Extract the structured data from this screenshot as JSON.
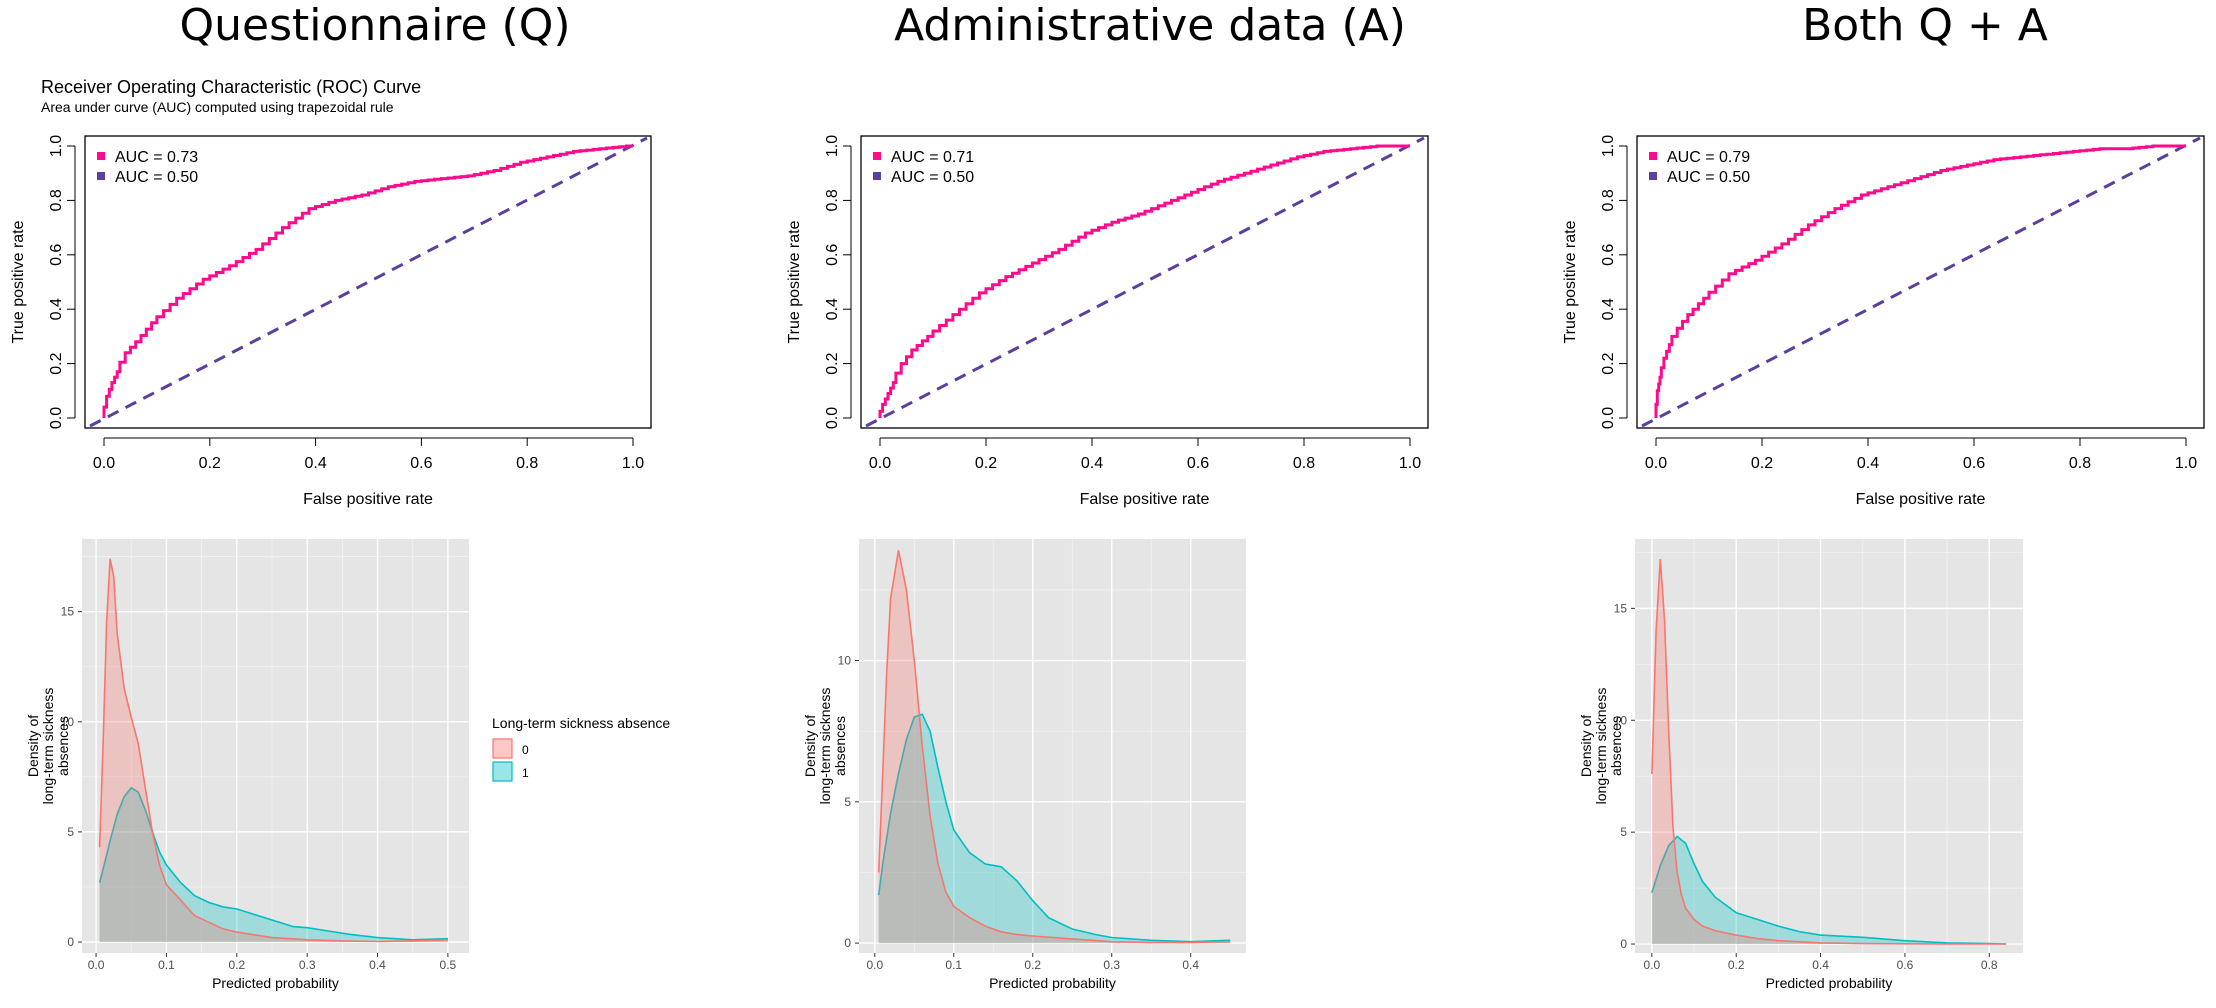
{
  "columns": [
    {
      "title": "Questionnaire (Q)",
      "roc": {
        "heading": "Receiver Operating Characteristic (ROC) Curve",
        "subheading": "Area under curve (AUC) computed using trapezoidal rule",
        "xlabel": "False positive rate",
        "ylabel": "True positive rate",
        "legend": [
          "AUC = 0.73",
          "AUC = 0.50"
        ]
      },
      "density": {
        "xlabel": "Predicted probability",
        "ylabel": [
          "Density of",
          "long-term sickness",
          "absences"
        ]
      }
    },
    {
      "title": "Administrative data (A)",
      "roc": {
        "heading": "",
        "subheading": "",
        "xlabel": "False positive rate",
        "ylabel": "True positive rate",
        "legend": [
          "AUC = 0.71",
          "AUC = 0.50"
        ]
      },
      "density": {
        "xlabel": "Predicted probability",
        "ylabel": [
          "Density of",
          "long-term sickness",
          "absences"
        ]
      }
    },
    {
      "title": "Both Q + A",
      "roc": {
        "heading": "",
        "subheading": "",
        "xlabel": "False positive rate",
        "ylabel": "True positive rate",
        "legend": [
          "AUC = 0.79",
          "AUC = 0.50"
        ]
      },
      "density": {
        "xlabel": "Predicted probability",
        "ylabel": [
          "Density of",
          "long-term sickness",
          "absences"
        ]
      }
    }
  ],
  "density_legend": {
    "title": "Long-term sickness absence",
    "items": [
      "0",
      "1"
    ]
  },
  "colors": {
    "roc_curve": "#ff0a8c",
    "chance_line": "#5b3fa0",
    "density_0_line": "#f8766d",
    "density_0_fill": "#f8766d",
    "density_1_line": "#00bfc4",
    "density_1_fill": "#00bfc4",
    "panel_bg": "#e5e5e5",
    "grid": "#ffffff"
  },
  "chart_data": [
    {
      "type": "line",
      "panel": "roc-q",
      "xlim": [
        0,
        1
      ],
      "ylim": [
        0,
        1
      ],
      "xticks": [
        0.0,
        0.2,
        0.4,
        0.6,
        0.8,
        1.0
      ],
      "yticks": [
        0.0,
        0.2,
        0.4,
        0.6,
        0.8,
        1.0
      ],
      "series": [
        {
          "name": "AUC = 0.73",
          "x": [
            0,
            0.01,
            0.02,
            0.03,
            0.05,
            0.07,
            0.1,
            0.15,
            0.2,
            0.25,
            0.3,
            0.35,
            0.4,
            0.45,
            0.5,
            0.55,
            0.6,
            0.65,
            0.7,
            0.75,
            0.8,
            0.85,
            0.9,
            0.95,
            1.0
          ],
          "y": [
            0,
            0.08,
            0.13,
            0.17,
            0.24,
            0.28,
            0.35,
            0.44,
            0.51,
            0.56,
            0.62,
            0.7,
            0.77,
            0.8,
            0.82,
            0.85,
            0.87,
            0.88,
            0.89,
            0.91,
            0.94,
            0.96,
            0.98,
            0.99,
            1.0
          ]
        },
        {
          "name": "AUC = 0.50",
          "x": [
            0,
            1
          ],
          "y": [
            0,
            1
          ]
        }
      ]
    },
    {
      "type": "line",
      "panel": "roc-a",
      "xlim": [
        0,
        1
      ],
      "ylim": [
        0,
        1
      ],
      "xticks": [
        0.0,
        0.2,
        0.4,
        0.6,
        0.8,
        1.0
      ],
      "yticks": [
        0.0,
        0.2,
        0.4,
        0.6,
        0.8,
        1.0
      ],
      "series": [
        {
          "name": "AUC = 0.71",
          "x": [
            0,
            0.01,
            0.02,
            0.03,
            0.05,
            0.07,
            0.1,
            0.15,
            0.2,
            0.25,
            0.3,
            0.35,
            0.4,
            0.45,
            0.5,
            0.55,
            0.6,
            0.65,
            0.7,
            0.75,
            0.8,
            0.85,
            0.9,
            0.95,
            1.0
          ],
          "y": [
            0,
            0.05,
            0.09,
            0.13,
            0.2,
            0.25,
            0.3,
            0.38,
            0.46,
            0.52,
            0.57,
            0.62,
            0.68,
            0.72,
            0.75,
            0.79,
            0.83,
            0.87,
            0.9,
            0.93,
            0.96,
            0.98,
            0.99,
            1.0,
            1.0
          ]
        },
        {
          "name": "AUC = 0.50",
          "x": [
            0,
            1
          ],
          "y": [
            0,
            1
          ]
        }
      ]
    },
    {
      "type": "line",
      "panel": "roc-both",
      "xlim": [
        0,
        1
      ],
      "ylim": [
        0,
        1
      ],
      "xticks": [
        0.0,
        0.2,
        0.4,
        0.6,
        0.8,
        1.0
      ],
      "yticks": [
        0.0,
        0.2,
        0.4,
        0.6,
        0.8,
        1.0
      ],
      "series": [
        {
          "name": "AUC = 0.79",
          "x": [
            0,
            0.005,
            0.01,
            0.02,
            0.03,
            0.05,
            0.07,
            0.1,
            0.15,
            0.2,
            0.25,
            0.3,
            0.35,
            0.4,
            0.45,
            0.5,
            0.55,
            0.6,
            0.65,
            0.7,
            0.75,
            0.8,
            0.85,
            0.9,
            0.95,
            1.0
          ],
          "y": [
            0,
            0.1,
            0.15,
            0.22,
            0.27,
            0.33,
            0.38,
            0.44,
            0.53,
            0.58,
            0.64,
            0.71,
            0.77,
            0.82,
            0.85,
            0.88,
            0.91,
            0.93,
            0.95,
            0.96,
            0.97,
            0.98,
            0.99,
            0.99,
            1.0,
            1.0
          ]
        },
        {
          "name": "AUC = 0.50",
          "x": [
            0,
            1
          ],
          "y": [
            0,
            1
          ]
        }
      ]
    },
    {
      "type": "area",
      "panel": "density-q",
      "xlim": [
        -0.02,
        0.53
      ],
      "ylim": [
        -0.5,
        18.3
      ],
      "xticks": [
        0.0,
        0.1,
        0.2,
        0.3,
        0.4,
        0.5
      ],
      "yticks": [
        0,
        5,
        10,
        15
      ],
      "series": [
        {
          "name": "0",
          "x": [
            0.005,
            0.01,
            0.015,
            0.02,
            0.025,
            0.03,
            0.04,
            0.05,
            0.06,
            0.07,
            0.08,
            0.09,
            0.1,
            0.12,
            0.14,
            0.16,
            0.18,
            0.2,
            0.25,
            0.3,
            0.35,
            0.4,
            0.45,
            0.5
          ],
          "y": [
            4.3,
            9.0,
            14.5,
            17.4,
            16.6,
            14.0,
            11.5,
            10.2,
            9.0,
            7.0,
            5.0,
            3.5,
            2.6,
            1.9,
            1.2,
            0.9,
            0.6,
            0.45,
            0.2,
            0.1,
            0.05,
            0.02,
            0.05,
            0.1
          ]
        },
        {
          "name": "1",
          "x": [
            0.005,
            0.01,
            0.02,
            0.03,
            0.04,
            0.05,
            0.06,
            0.07,
            0.08,
            0.09,
            0.1,
            0.12,
            0.14,
            0.16,
            0.18,
            0.2,
            0.22,
            0.25,
            0.28,
            0.3,
            0.33,
            0.36,
            0.4,
            0.45,
            0.5
          ],
          "y": [
            2.7,
            3.3,
            4.6,
            5.8,
            6.6,
            7.0,
            6.8,
            6.0,
            5.0,
            4.1,
            3.5,
            2.7,
            2.1,
            1.8,
            1.6,
            1.5,
            1.3,
            1.0,
            0.7,
            0.65,
            0.5,
            0.35,
            0.2,
            0.1,
            0.15
          ]
        }
      ]
    },
    {
      "type": "area",
      "panel": "density-a",
      "xlim": [
        -0.02,
        0.47
      ],
      "ylim": [
        -0.35,
        14.3
      ],
      "xticks": [
        0.0,
        0.1,
        0.2,
        0.3,
        0.4
      ],
      "yticks": [
        0,
        5,
        10
      ],
      "series": [
        {
          "name": "0",
          "x": [
            0.005,
            0.01,
            0.015,
            0.02,
            0.03,
            0.04,
            0.05,
            0.06,
            0.07,
            0.08,
            0.09,
            0.1,
            0.12,
            0.14,
            0.16,
            0.18,
            0.2,
            0.25,
            0.3,
            0.35,
            0.4,
            0.45
          ],
          "y": [
            2.5,
            6.0,
            9.5,
            12.2,
            13.9,
            12.5,
            10.0,
            7.0,
            4.5,
            2.8,
            1.8,
            1.3,
            0.9,
            0.6,
            0.4,
            0.3,
            0.25,
            0.15,
            0.05,
            0.02,
            0.02,
            0.05
          ]
        },
        {
          "name": "1",
          "x": [
            0.005,
            0.01,
            0.02,
            0.03,
            0.04,
            0.05,
            0.06,
            0.07,
            0.08,
            0.09,
            0.1,
            0.12,
            0.14,
            0.16,
            0.18,
            0.2,
            0.22,
            0.25,
            0.28,
            0.3,
            0.35,
            0.4,
            0.45
          ],
          "y": [
            1.7,
            2.8,
            4.6,
            6.0,
            7.2,
            8.0,
            8.1,
            7.5,
            6.2,
            5.0,
            4.0,
            3.2,
            2.8,
            2.7,
            2.2,
            1.5,
            0.9,
            0.5,
            0.3,
            0.2,
            0.1,
            0.05,
            0.1
          ]
        }
      ]
    },
    {
      "type": "area",
      "panel": "density-both",
      "xlim": [
        -0.04,
        0.88
      ],
      "ylim": [
        -0.4,
        18.1
      ],
      "xticks": [
        0.0,
        0.2,
        0.4,
        0.6,
        0.8
      ],
      "yticks": [
        0,
        5,
        10,
        15
      ],
      "series": [
        {
          "name": "0",
          "x": [
            0.0,
            0.01,
            0.02,
            0.03,
            0.04,
            0.05,
            0.06,
            0.07,
            0.08,
            0.1,
            0.12,
            0.15,
            0.2,
            0.25,
            0.3,
            0.35,
            0.4,
            0.5,
            0.6,
            0.7,
            0.8,
            0.84
          ],
          "y": [
            7.6,
            14.0,
            17.2,
            14.5,
            9.5,
            5.2,
            3.2,
            2.2,
            1.6,
            1.1,
            0.8,
            0.6,
            0.4,
            0.25,
            0.15,
            0.1,
            0.05,
            0.02,
            0.01,
            0.0,
            0.0,
            0.0
          ]
        },
        {
          "name": "1",
          "x": [
            0.0,
            0.02,
            0.04,
            0.06,
            0.08,
            0.1,
            0.12,
            0.15,
            0.2,
            0.25,
            0.3,
            0.35,
            0.4,
            0.45,
            0.5,
            0.6,
            0.7,
            0.8,
            0.84
          ],
          "y": [
            2.3,
            3.5,
            4.4,
            4.8,
            4.5,
            3.6,
            2.8,
            2.1,
            1.4,
            1.1,
            0.8,
            0.55,
            0.4,
            0.35,
            0.3,
            0.15,
            0.05,
            0.02,
            0.0
          ]
        }
      ]
    }
  ]
}
